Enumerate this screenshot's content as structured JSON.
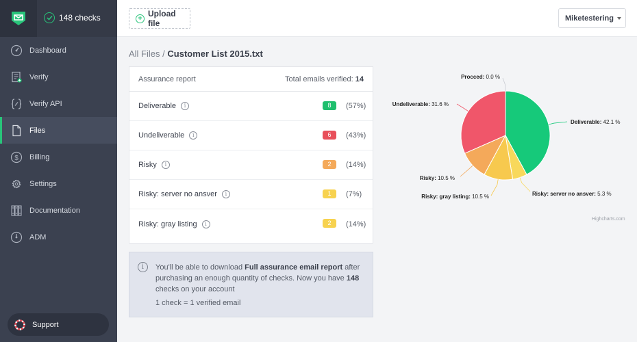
{
  "app": {
    "checks_count": "148 checks"
  },
  "sidebar": {
    "items": [
      {
        "label": "Dashboard",
        "icon": "gauge-icon",
        "active": false
      },
      {
        "label": "Verify",
        "icon": "document-add-icon",
        "active": false
      },
      {
        "label": "Verify API",
        "icon": "braces-icon",
        "active": false
      },
      {
        "label": "Files",
        "icon": "file-icon",
        "active": true
      },
      {
        "label": "Billing",
        "icon": "dollar-icon",
        "active": false
      },
      {
        "label": "Settings",
        "icon": "gear-icon",
        "active": false
      },
      {
        "label": "Documentation",
        "icon": "books-icon",
        "active": false
      },
      {
        "label": "ADM",
        "icon": "gauge-icon",
        "active": false
      }
    ],
    "support_label": "Support"
  },
  "topbar": {
    "upload_label": "Upload file",
    "user_label": "Miketestering"
  },
  "breadcrumb": {
    "root": "All Files",
    "separator": "/",
    "current": "Customer List 2015.txt"
  },
  "report": {
    "title": "Assurance report",
    "total_label": "Total emails verified:",
    "total_value": "14",
    "rows": [
      {
        "label": "Deliverable",
        "count": "8",
        "pct": "(57%)",
        "color": "#1fbf6e"
      },
      {
        "label": "Undeliverable",
        "count": "6",
        "pct": "(43%)",
        "color": "#e8505b"
      },
      {
        "label": "Risky",
        "count": "2",
        "pct": "(14%)",
        "color": "#f4a95a"
      },
      {
        "label": "Risky: server no ansver",
        "count": "1",
        "pct": "(7%)",
        "color": "#f7d24f"
      },
      {
        "label": "Risky: gray listing",
        "count": "2",
        "pct": "(14%)",
        "color": "#f7d24f"
      }
    ]
  },
  "notice": {
    "part1": "You'll be able to download ",
    "bold1": "Full assurance email report",
    "part2": " after purchasing an enough quantity of checks. Now you have ",
    "bold2": "148",
    "part3": " checks on your account",
    "equation": "1 check = 1 verified email"
  },
  "chart_data": {
    "type": "pie",
    "slices": [
      {
        "name": "Deliverable",
        "label": "Deliverable: 42.1 %",
        "value": 42.1,
        "color": "#16c97a"
      },
      {
        "name": "Risky: server no ansver",
        "label": "Risky: server no ansver: 5.3 %",
        "value": 5.3,
        "color": "#f8d85b"
      },
      {
        "name": "Risky: gray listing",
        "label": "Risky: gray listing: 10.5 %",
        "value": 10.5,
        "color": "#f7c94e"
      },
      {
        "name": "Risky",
        "label": "Risky: 10.5 %",
        "value": 10.5,
        "color": "#f4a95a"
      },
      {
        "name": "Undeliverable",
        "label": "Undeliverable: 31.6 %",
        "value": 31.6,
        "color": "#f0566a"
      },
      {
        "name": "Procced",
        "label": "Procced: 0.0 %",
        "value": 0.0,
        "color": "#8fd3b0"
      }
    ],
    "credits": "Highcharts.com"
  }
}
